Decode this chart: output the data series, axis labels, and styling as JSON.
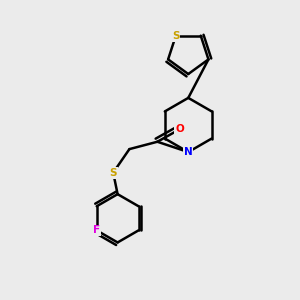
{
  "background_color": "#ebebeb",
  "atom_colors": {
    "S_thiophene": "#c8a000",
    "S_thioether": "#c8a000",
    "N": "#0000ff",
    "O": "#ff0000",
    "F": "#e000e0",
    "C": "#000000"
  },
  "bond_color": "#000000",
  "lw": 1.8
}
